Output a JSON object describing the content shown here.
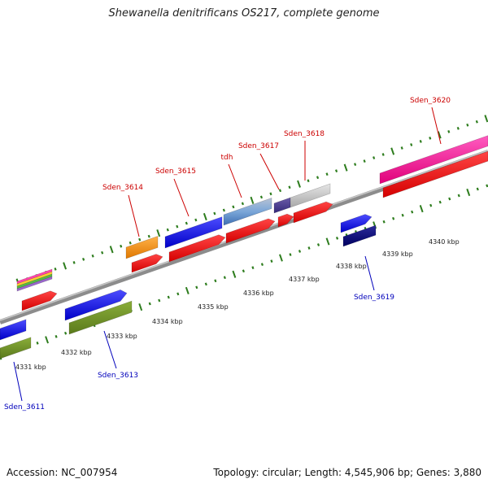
{
  "title": "Shewanella denitrificans OS217, complete genome",
  "footer": {
    "accession": "Accession: NC_007954",
    "summary": "Topology: circular; Length: 4,545,906 bp; Genes: 3,880"
  },
  "colors": {
    "backbone": "#8a8a8a",
    "tick": "#2e7d1e",
    "label_top": "#cc0000",
    "label_bottom": "#0000bb",
    "scale_text": "#222222"
  },
  "scale_labels": [
    "4331 kbp",
    "4332 kbp",
    "4333 kbp",
    "4334 kbp",
    "4335 kbp",
    "4336 kbp",
    "4337 kbp",
    "4338 kbp",
    "4339 kbp",
    "4340 kbp"
  ],
  "gene_labels": {
    "top": [
      "Sden_3614",
      "Sden_3615",
      "tdh",
      "Sden_3617",
      "Sden_3618",
      "Sden_3620"
    ],
    "bottom": [
      "Sden_3611",
      "Sden_3613",
      "Sden_3619"
    ]
  }
}
